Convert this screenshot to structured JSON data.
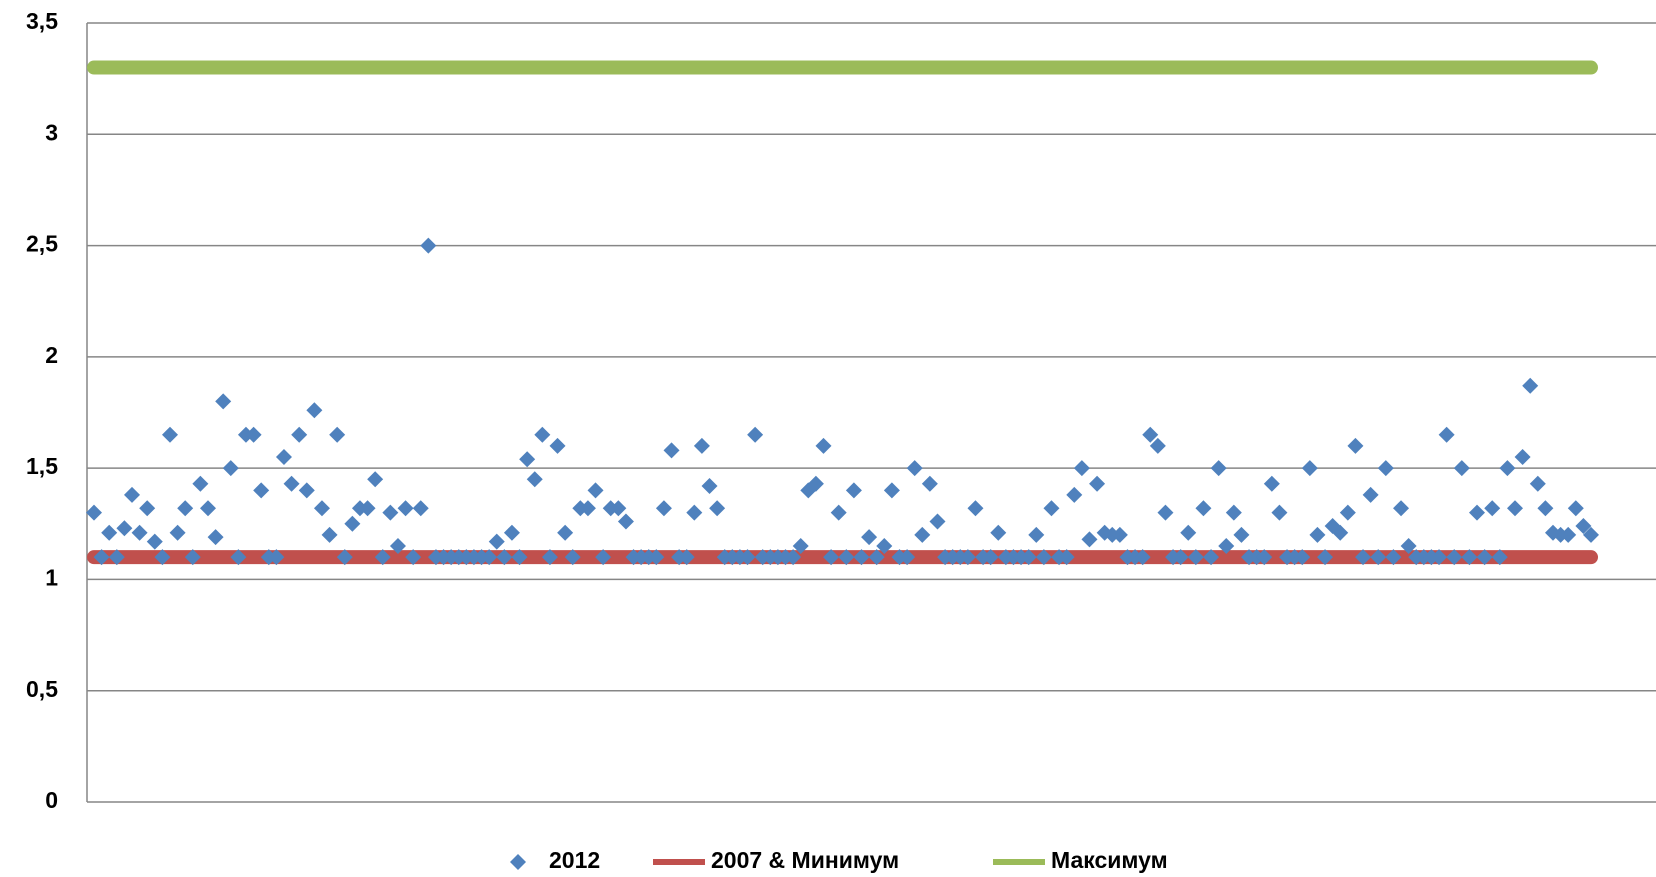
{
  "chart_data": {
    "type": "scatter",
    "ylim": [
      0,
      3.5
    ],
    "yticks": [
      0,
      {
        "value": 0.5,
        "label": "0,5"
      },
      1,
      {
        "value": 1.5,
        "label": "1,5"
      },
      2,
      {
        "value": 2.5,
        "label": "2,5"
      },
      3,
      {
        "value": 3.5,
        "label": "3,5"
      }
    ],
    "grid": true,
    "legend": "bottom",
    "series": [
      {
        "name": "2012",
        "type": "scatter",
        "color": "#4f81bd",
        "values": [
          1.3,
          1.1,
          1.21,
          1.1,
          1.23,
          1.38,
          1.21,
          1.32,
          1.17,
          1.1,
          1.65,
          1.21,
          1.32,
          1.1,
          1.43,
          1.32,
          1.19,
          1.8,
          1.5,
          1.1,
          1.65,
          1.65,
          1.4,
          1.1,
          1.1,
          1.55,
          1.43,
          1.65,
          1.4,
          1.76,
          1.32,
          1.2,
          1.65,
          1.1,
          1.25,
          1.32,
          1.32,
          1.45,
          1.1,
          1.3,
          1.15,
          1.32,
          1.1,
          1.32,
          2.5,
          1.1,
          1.1,
          1.1,
          1.1,
          1.1,
          1.1,
          1.1,
          1.1,
          1.17,
          1.1,
          1.21,
          1.1,
          1.54,
          1.45,
          1.65,
          1.1,
          1.6,
          1.21,
          1.1,
          1.32,
          1.32,
          1.4,
          1.1,
          1.32,
          1.32,
          1.26,
          1.1,
          1.1,
          1.1,
          1.1,
          1.32,
          1.58,
          1.1,
          1.1,
          1.3,
          1.6,
          1.42,
          1.32,
          1.1,
          1.1,
          1.1,
          1.1,
          1.65,
          1.1,
          1.1,
          1.1,
          1.1,
          1.1,
          1.15,
          1.4,
          1.43,
          1.6,
          1.1,
          1.3,
          1.1,
          1.4,
          1.1,
          1.19,
          1.1,
          1.15,
          1.4,
          1.1,
          1.1,
          1.5,
          1.2,
          1.43,
          1.26,
          1.1,
          1.1,
          1.1,
          1.1,
          1.32,
          1.1,
          1.1,
          1.21,
          1.1,
          1.1,
          1.1,
          1.1,
          1.2,
          1.1,
          1.32,
          1.1,
          1.1,
          1.38,
          1.5,
          1.18,
          1.43,
          1.21,
          1.2,
          1.2,
          1.1,
          1.1,
          1.1,
          1.65,
          1.6,
          1.3,
          1.1,
          1.1,
          1.21,
          1.1,
          1.32,
          1.1,
          1.5,
          1.15,
          1.3,
          1.2,
          1.1,
          1.1,
          1.1,
          1.43,
          1.3,
          1.1,
          1.1,
          1.1,
          1.5,
          1.2,
          1.1,
          1.24,
          1.21,
          1.3,
          1.6,
          1.1,
          1.38,
          1.1,
          1.5,
          1.1,
          1.32,
          1.15,
          1.1,
          1.1,
          1.1,
          1.1,
          1.65,
          1.1,
          1.5,
          1.1,
          1.3,
          1.1,
          1.32,
          1.1,
          1.5,
          1.32,
          1.55,
          1.87,
          1.43,
          1.32,
          1.21,
          1.2,
          1.2,
          1.32,
          1.24,
          1.2
        ]
      },
      {
        "name": "2007 & Минимум",
        "type": "line",
        "color": "#c0504d",
        "values": [
          1.1,
          1.1,
          1.1,
          1.1,
          1.1,
          1.1,
          1.1,
          1.1,
          1.1,
          1.1,
          1.1,
          1.1,
          1.1,
          1.1,
          1.1,
          1.1,
          1.1,
          1.1,
          1.1,
          1.1,
          1.1,
          1.1,
          1.1,
          1.1,
          1.1,
          1.1,
          1.1,
          1.1,
          1.1,
          1.1,
          1.1,
          1.1,
          1.1,
          1.1,
          1.1,
          1.1,
          1.1,
          1.1,
          1.1,
          1.1,
          1.1,
          1.1,
          1.1,
          1.1,
          1.1,
          1.1,
          1.1,
          1.1,
          1.1,
          1.1,
          1.1,
          1.1,
          1.1,
          1.1,
          1.1,
          1.1,
          1.1,
          1.1,
          1.1,
          1.1,
          1.1,
          1.1,
          1.1,
          1.1,
          1.1,
          1.1,
          1.1,
          1.1,
          1.1,
          1.1,
          1.1,
          1.1,
          1.1,
          1.1,
          1.1,
          1.1,
          1.1,
          1.1,
          1.1,
          1.1,
          1.1,
          1.1,
          1.1,
          1.1,
          1.1,
          1.1,
          1.1,
          1.1,
          1.1,
          1.1,
          1.1,
          1.1,
          1.1,
          1.1,
          1.1,
          1.1,
          1.1,
          1.1,
          1.1,
          1.1,
          1.1,
          1.1,
          1.1,
          1.1,
          1.1,
          1.1,
          1.1,
          1.1,
          1.1,
          1.1,
          1.1,
          1.1,
          1.1,
          1.1,
          1.1,
          1.1,
          1.1,
          1.1,
          1.1,
          1.1,
          1.1,
          1.1,
          1.1,
          1.1,
          1.1,
          1.1,
          1.1,
          1.1,
          1.1,
          1.1,
          1.1,
          1.1,
          1.1,
          1.1,
          1.1,
          1.1,
          1.1,
          1.1,
          1.1,
          1.1,
          1.1,
          1.1,
          1.1,
          1.1,
          1.1,
          1.1,
          1.1,
          1.1,
          1.1,
          1.1,
          1.1,
          1.1,
          1.1,
          1.1,
          1.1,
          1.1,
          1.1,
          1.1,
          1.1,
          1.1,
          1.1,
          1.1,
          1.1,
          1.1,
          1.1,
          1.1,
          1.1,
          1.1,
          1.1,
          1.1,
          1.1,
          1.1,
          1.1,
          1.1,
          1.1,
          1.1,
          1.1,
          1.1,
          1.1,
          1.1,
          1.1,
          1.1,
          1.1,
          1.1,
          1.1,
          1.1,
          1.1,
          1.1,
          1.1,
          1.1,
          1.1,
          1.1,
          1.1,
          1.1,
          1.1,
          1.1,
          1.1,
          1.1
        ]
      },
      {
        "name": "Максимум",
        "type": "line",
        "color": "#9bbb59",
        "values": [
          3.3,
          3.3,
          3.3,
          3.3,
          3.3,
          3.3,
          3.3,
          3.3,
          3.3,
          3.3,
          3.3,
          3.3,
          3.3,
          3.3,
          3.3,
          3.3,
          3.3,
          3.3,
          3.3,
          3.3,
          3.3,
          3.3,
          3.3,
          3.3,
          3.3,
          3.3,
          3.3,
          3.3,
          3.3,
          3.3,
          3.3,
          3.3,
          3.3,
          3.3,
          3.3,
          3.3,
          3.3,
          3.3,
          3.3,
          3.3,
          3.3,
          3.3,
          3.3,
          3.3,
          3.3,
          3.3,
          3.3,
          3.3,
          3.3,
          3.3,
          3.3,
          3.3,
          3.3,
          3.3,
          3.3,
          3.3,
          3.3,
          3.3,
          3.3,
          3.3,
          3.3,
          3.3,
          3.3,
          3.3,
          3.3,
          3.3,
          3.3,
          3.3,
          3.3,
          3.3,
          3.3,
          3.3,
          3.3,
          3.3,
          3.3,
          3.3,
          3.3,
          3.3,
          3.3,
          3.3,
          3.3,
          3.3,
          3.3,
          3.3,
          3.3,
          3.3,
          3.3,
          3.3,
          3.3,
          3.3,
          3.3,
          3.3,
          3.3,
          3.3,
          3.3,
          3.3,
          3.3,
          3.3,
          3.3,
          3.3,
          3.3,
          3.3,
          3.3,
          3.3,
          3.3,
          3.3,
          3.3,
          3.3,
          3.3,
          3.3,
          3.3,
          3.3,
          3.3,
          3.3,
          3.3,
          3.3,
          3.3,
          3.3,
          3.3,
          3.3,
          3.3,
          3.3,
          3.3,
          3.3,
          3.3,
          3.3,
          3.3,
          3.3,
          3.3,
          3.3,
          3.3,
          3.3,
          3.3,
          3.3,
          3.3,
          3.3,
          3.3,
          3.3,
          3.3,
          3.3,
          3.3,
          3.3,
          3.3,
          3.3,
          3.3,
          3.3,
          3.3,
          3.3,
          3.3,
          3.3,
          3.3,
          3.3,
          3.3,
          3.3,
          3.3,
          3.3,
          3.3,
          3.3,
          3.3,
          3.3,
          3.3,
          3.3,
          3.3,
          3.3,
          3.3,
          3.3,
          3.3,
          3.3,
          3.3,
          3.3,
          3.3,
          3.3,
          3.3,
          3.3,
          3.3,
          3.3,
          3.3,
          3.3,
          3.3,
          3.3,
          3.3,
          3.3,
          3.3,
          3.3,
          3.3,
          3.3,
          3.3,
          3.3,
          3.3,
          3.3,
          3.3,
          3.3,
          3.3,
          3.3,
          3.3,
          3.3,
          3.3,
          3.3
        ]
      }
    ]
  }
}
